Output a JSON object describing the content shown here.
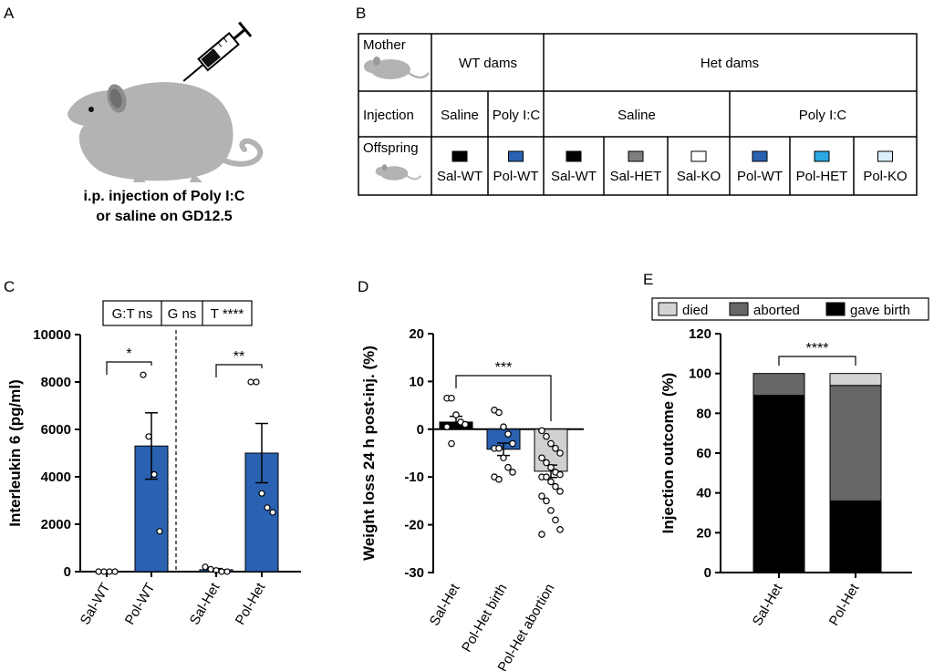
{
  "panels": {
    "a": "A",
    "b": "B",
    "c": "C",
    "d": "D",
    "e": "E"
  },
  "panel_a": {
    "caption_line1": "i.p. injection of Poly I:C",
    "caption_line2": "or saline on GD12.5"
  },
  "panel_b": {
    "row_labels": {
      "mother": "Mother",
      "injection": "Injection",
      "offspring": "Offspring"
    },
    "dams": {
      "wt": "WT dams",
      "het": "Het dams"
    },
    "injections": {
      "wt_saline": "Saline",
      "wt_poly": "Poly I:C",
      "het_saline": "Saline",
      "het_poly": "Poly I:C"
    },
    "offspring": [
      {
        "label": "Sal-WT",
        "color": "#000000"
      },
      {
        "label": "Pol-WT",
        "color": "#2a62b1"
      },
      {
        "label": "Sal-WT",
        "color": "#000000"
      },
      {
        "label": "Sal-HET",
        "color": "#7f7f7f"
      },
      {
        "label": "Sal-KO",
        "color": "#ffffff"
      },
      {
        "label": "Pol-WT",
        "color": "#2a62b1"
      },
      {
        "label": "Pol-HET",
        "color": "#2aa8e0"
      },
      {
        "label": "Pol-KO",
        "color": "#d9eef9"
      }
    ]
  },
  "chart_data": [
    {
      "id": "C",
      "type": "bar",
      "ylabel": "Interleukin 6 (pg/ml)",
      "ylim": [
        0,
        10000
      ],
      "yticks": [
        "0",
        "2000",
        "4000",
        "6000",
        "8000",
        "10000"
      ],
      "categories": [
        "Sal-WT",
        "Pol-WT",
        "Sal-Het",
        "Pol-Het"
      ],
      "values": [
        0,
        5300,
        80,
        5000
      ],
      "error": [
        0,
        1400,
        50,
        1250
      ],
      "colors": [
        "#2a62b1",
        "#2a62b1",
        "#2a62b1",
        "#2a62b1"
      ],
      "points": [
        [
          0,
          0,
          0,
          0
        ],
        [
          8300,
          5700,
          4100,
          1700
        ],
        [
          200,
          100,
          50,
          0,
          0
        ],
        [
          8000,
          8000,
          3300,
          2700,
          2500
        ]
      ],
      "stats_box": [
        "G:T ns",
        "G ns",
        "T ****"
      ],
      "significance": [
        {
          "from": 0,
          "to": 1,
          "label": "*"
        },
        {
          "from": 2,
          "to": 3,
          "label": "**"
        }
      ]
    },
    {
      "id": "D",
      "type": "bar",
      "ylabel": "Weight loss 24 h post-inj.  (%)",
      "ylim": [
        -30,
        20
      ],
      "yticks": [
        "-30",
        "-20",
        "-10",
        "0",
        "10",
        "20"
      ],
      "categories": [
        "Sal-Het",
        "Pol-Het birth",
        "Pol-Het abortion"
      ],
      "values": [
        1.5,
        -4.2,
        -8.8
      ],
      "error": [
        1.2,
        1.3,
        1.3
      ],
      "colors": [
        "#000000",
        "#2a62b1",
        "#d0d0d0"
      ],
      "points": [
        [
          6.5,
          6.5,
          3,
          1.5,
          1,
          0.5,
          -3
        ],
        [
          4,
          3.5,
          0.5,
          -1,
          -3,
          -4,
          -4,
          -6,
          -8,
          -9,
          -10,
          -10.5
        ],
        [
          -0.3,
          -1.5,
          -3,
          -4,
          -5,
          -6,
          -7,
          -8,
          -9,
          -9.5,
          -10,
          -10,
          -11,
          -12,
          -13,
          -14,
          -15,
          -17,
          -19,
          -21,
          -22
        ]
      ],
      "significance": [
        {
          "from": 0,
          "to": 2,
          "label": "***"
        }
      ]
    },
    {
      "id": "E",
      "type": "bar",
      "stacked": true,
      "ylabel": "Injection outcome (%)",
      "ylim": [
        0,
        120
      ],
      "yticks": [
        "0",
        "20",
        "40",
        "60",
        "80",
        "100",
        "120"
      ],
      "categories": [
        "Sal-Het",
        "Pol-Het"
      ],
      "series": [
        {
          "name": "gave birth",
          "color": "#000000",
          "values": [
            89,
            36
          ]
        },
        {
          "name": "aborted",
          "color": "#666666",
          "values": [
            11,
            58
          ]
        },
        {
          "name": "died",
          "color": "#d3d3d3",
          "values": [
            0,
            6
          ]
        }
      ],
      "legend": [
        "died",
        "aborted",
        "gave birth"
      ],
      "significance": [
        {
          "from": 0,
          "to": 1,
          "label": "****"
        }
      ]
    }
  ]
}
